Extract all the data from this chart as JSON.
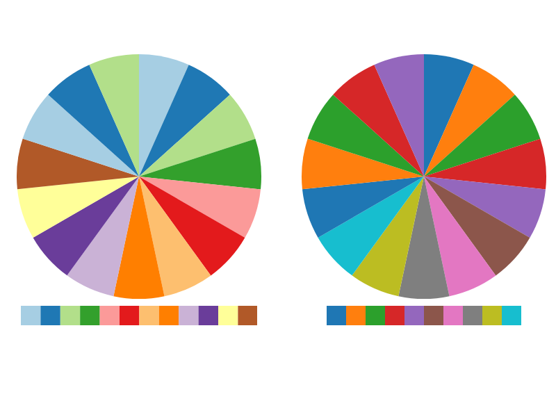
{
  "chart_data": [
    {
      "type": "pie",
      "categories": [
        null,
        null,
        null,
        null,
        null,
        null,
        null,
        null,
        null,
        null,
        null,
        null,
        null,
        null,
        null
      ],
      "values": [
        6.67,
        6.67,
        6.67,
        6.66,
        6.67,
        6.67,
        6.66,
        6.67,
        6.67,
        6.66,
        6.67,
        6.67,
        6.66,
        6.67,
        6.66
      ],
      "colors": [
        "#a6cee3",
        "#1f78b4",
        "#b2df8a",
        "#33a02c",
        "#fb9a99",
        "#e31a1c",
        "#fdbf6f",
        "#ff7f00",
        "#cab2d6",
        "#6a3d9a",
        "#ffff99",
        "#b15928",
        "#a6cee3",
        "#1f78b4",
        "#b2df8a"
      ]
    },
    {
      "type": "pie",
      "categories": [
        null,
        null,
        null,
        null,
        null,
        null,
        null,
        null,
        null,
        null,
        null,
        null,
        null,
        null,
        null
      ],
      "values": [
        6.67,
        6.67,
        6.67,
        6.66,
        6.67,
        6.67,
        6.66,
        6.67,
        6.67,
        6.66,
        6.67,
        6.67,
        6.66,
        6.67,
        6.66
      ],
      "colors": [
        "#1f77b4",
        "#ff7f0e",
        "#2ca02c",
        "#d62728",
        "#9467bd",
        "#8c564b",
        "#e377c2",
        "#7f7f7f",
        "#bcbd22",
        "#17becf",
        "#1f77b4",
        "#ff7f0e",
        "#2ca02c",
        "#d62728",
        "#9467bd"
      ]
    }
  ]
}
